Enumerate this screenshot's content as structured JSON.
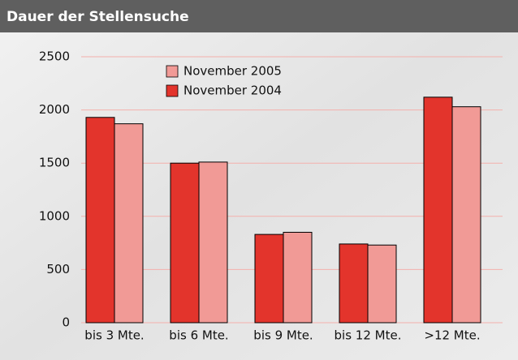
{
  "chart_data": {
    "type": "bar",
    "title": "Dauer der Stellensuche",
    "categories": [
      "bis 3 Mte.",
      "bis 6 Mte.",
      "bis 9 Mte.",
      "bis 12 Mte.",
      ">12 Mte."
    ],
    "series": [
      {
        "name": "November 2005",
        "color": "#f19a96",
        "values": [
          1870,
          1510,
          850,
          730,
          2030
        ]
      },
      {
        "name": "November 2004",
        "color": "#e3342c",
        "values": [
          1930,
          1500,
          830,
          740,
          2120
        ]
      }
    ],
    "ylim": [
      0,
      2500
    ],
    "yticks": [
      0,
      500,
      1000,
      1500,
      2000,
      2500
    ],
    "grid": true
  }
}
